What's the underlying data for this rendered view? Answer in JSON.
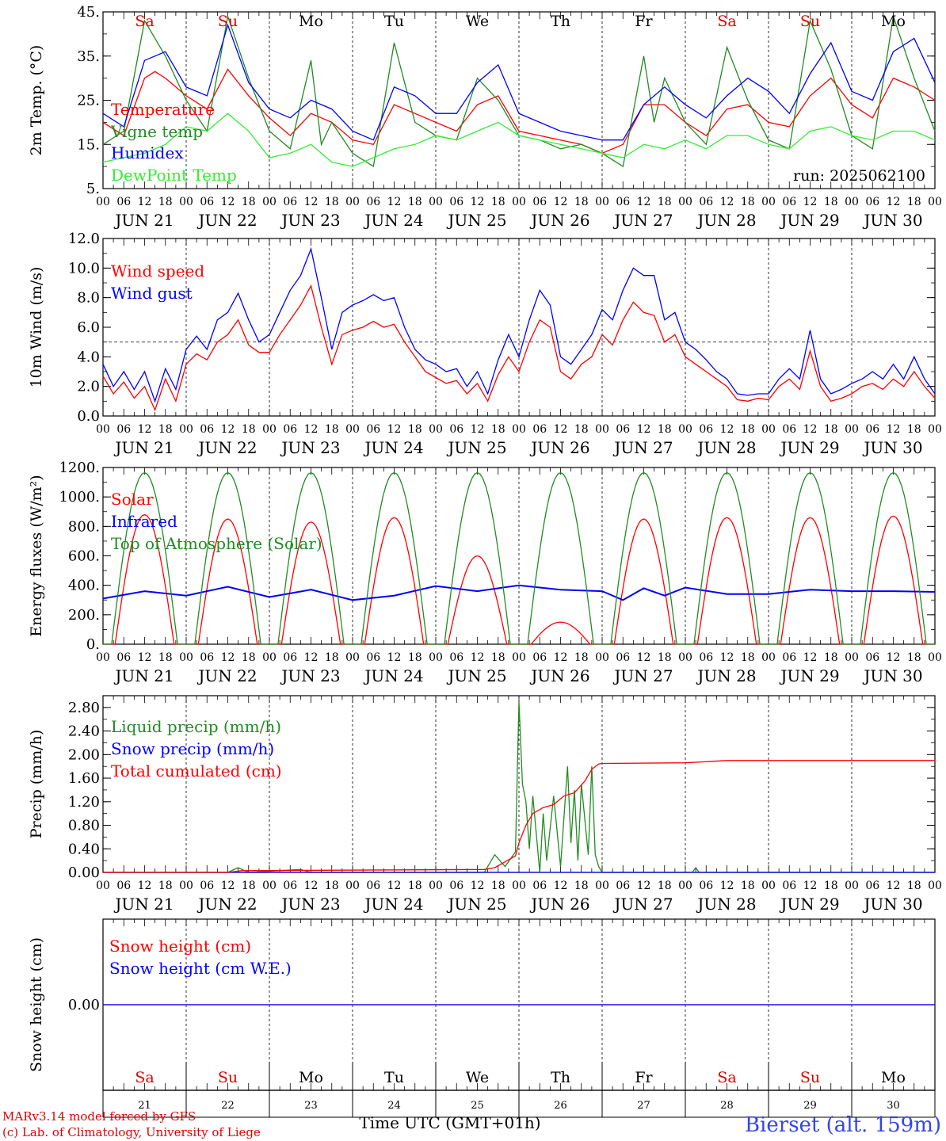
{
  "header": {
    "run_label": "run: 2025062100"
  },
  "days": {
    "dates": [
      "JUN 21",
      "JUN 22",
      "JUN 23",
      "JUN 24",
      "JUN 25",
      "JUN 26",
      "JUN 27",
      "JUN 28",
      "JUN 29",
      "JUN 30"
    ],
    "weekdays": [
      "Sa",
      "Su",
      "Mo",
      "Tu",
      "We",
      "Th",
      "Fr",
      "Sa",
      "Su",
      "Mo"
    ],
    "weekday_colors": [
      "#e00000",
      "#e00000",
      "#000000",
      "#000000",
      "#000000",
      "#000000",
      "#000000",
      "#e00000",
      "#e00000",
      "#000000"
    ],
    "day_numbers": [
      "21",
      "22",
      "23",
      "24",
      "25",
      "26",
      "27",
      "28",
      "29",
      "30"
    ],
    "hour_labels": [
      "00",
      "06",
      "12",
      "18"
    ],
    "final_hour_label": "00"
  },
  "chart_data": [
    {
      "type": "line",
      "ylabel": "2m Temp. (°C)",
      "ylim": [
        5,
        45
      ],
      "yticks": [
        "5.",
        "15.",
        "25.",
        "35.",
        "45."
      ],
      "x_unit": "hours since JUN 21 00 UTC",
      "series": [
        {
          "name": "Temperature",
          "color": "#ff0000",
          "x": [
            0,
            6,
            12,
            15,
            18,
            24,
            30,
            36,
            42,
            48,
            54,
            60,
            66,
            72,
            78,
            84,
            90,
            96,
            102,
            108,
            114,
            120,
            126,
            132,
            138,
            144,
            150,
            156,
            162,
            168,
            174,
            180,
            186,
            192,
            198,
            204,
            210,
            216,
            222,
            228,
            234,
            240
          ],
          "values": [
            20,
            17,
            30,
            31.5,
            30,
            26,
            23,
            32,
            26,
            21,
            17,
            22,
            20,
            16,
            15,
            24,
            22,
            20,
            18,
            24,
            26,
            18,
            17,
            16,
            15,
            13,
            15,
            24,
            24,
            20,
            17,
            23,
            24,
            20,
            19,
            26,
            30,
            24,
            21,
            30,
            28,
            25
          ]
        },
        {
          "name": "Vigne temp",
          "color": "#228b22",
          "x": [
            0,
            6,
            12,
            18,
            24,
            30,
            36,
            42,
            48,
            54,
            60,
            63,
            66,
            72,
            78,
            84,
            90,
            96,
            102,
            108,
            114,
            120,
            126,
            132,
            138,
            144,
            150,
            156,
            159,
            162,
            168,
            174,
            180,
            186,
            192,
            198,
            204,
            210,
            216,
            222,
            228,
            234,
            240
          ],
          "values": [
            15,
            18,
            43,
            35,
            25,
            18,
            44,
            30,
            18,
            14,
            34,
            15,
            20,
            13,
            10,
            38,
            20,
            17,
            16,
            30,
            25,
            17,
            16,
            14,
            15,
            13,
            10,
            35,
            20,
            30,
            20,
            15,
            37,
            25,
            16,
            14,
            43,
            32,
            17,
            14,
            44,
            30,
            18
          ]
        },
        {
          "name": "Humidex",
          "color": "#0000ff",
          "x": [
            0,
            6,
            12,
            18,
            24,
            30,
            36,
            42,
            48,
            54,
            60,
            66,
            72,
            78,
            84,
            90,
            96,
            102,
            108,
            114,
            120,
            126,
            132,
            138,
            144,
            150,
            156,
            162,
            168,
            174,
            180,
            186,
            192,
            198,
            204,
            210,
            216,
            222,
            228,
            234,
            240
          ],
          "values": [
            22,
            19,
            34,
            36,
            28,
            26,
            42,
            29,
            23,
            21,
            25,
            23,
            18,
            16,
            28,
            26,
            22,
            22,
            29,
            33,
            22,
            20,
            18,
            17,
            16,
            16,
            24,
            28,
            24,
            21,
            26,
            30,
            27,
            22,
            31,
            38,
            27,
            25,
            36,
            39,
            29
          ]
        },
        {
          "name": "DewPoint Temp",
          "color": "#33ee33",
          "x": [
            0,
            6,
            12,
            18,
            24,
            30,
            36,
            42,
            48,
            54,
            60,
            66,
            72,
            78,
            84,
            90,
            96,
            102,
            108,
            114,
            120,
            126,
            132,
            138,
            144,
            150,
            156,
            162,
            168,
            174,
            180,
            186,
            192,
            198,
            204,
            210,
            216,
            222,
            228,
            234,
            240
          ],
          "values": [
            11,
            12,
            13,
            15,
            19,
            18,
            22,
            18,
            12,
            13,
            15,
            11,
            10,
            12,
            14,
            15,
            17,
            16,
            18,
            20,
            17,
            16,
            15,
            14,
            13,
            12,
            15,
            14,
            16,
            14,
            17,
            17,
            15,
            14,
            18,
            19,
            17,
            16,
            18,
            18,
            16
          ]
        }
      ]
    },
    {
      "type": "line",
      "ylabel": "10m Wind (m/s)",
      "ylim": [
        0,
        12
      ],
      "yticks": [
        "0.0",
        "2.0",
        "4.0",
        "6.0",
        "8.0",
        "10.0",
        "12.0"
      ],
      "reference_line": 5,
      "series": [
        {
          "name": "Wind speed",
          "color": "#ff0000",
          "x": [
            0,
            3,
            6,
            9,
            12,
            15,
            18,
            21,
            24,
            27,
            30,
            33,
            36,
            39,
            42,
            45,
            48,
            51,
            54,
            57,
            60,
            63,
            66,
            69,
            72,
            75,
            78,
            81,
            84,
            87,
            90,
            93,
            96,
            99,
            102,
            105,
            108,
            111,
            114,
            117,
            120,
            123,
            126,
            129,
            132,
            135,
            138,
            141,
            144,
            147,
            150,
            153,
            156,
            159,
            162,
            165,
            168,
            171,
            174,
            177,
            180,
            183,
            186,
            189,
            192,
            195,
            198,
            201,
            204,
            207,
            210,
            213,
            216,
            219,
            222,
            225,
            228,
            231,
            234,
            237,
            240
          ],
          "values": [
            2.7,
            1.5,
            2.3,
            1.2,
            2.0,
            0.4,
            2.5,
            1.0,
            3.5,
            4.2,
            3.8,
            5.0,
            5.5,
            6.5,
            4.8,
            4.3,
            4.3,
            5.5,
            6.5,
            7.5,
            8.8,
            6.0,
            3.5,
            5.5,
            5.8,
            6.0,
            6.4,
            6.0,
            6.2,
            5.0,
            4.0,
            3.0,
            2.6,
            2.2,
            2.4,
            1.5,
            2.2,
            1.0,
            2.8,
            4.0,
            3.0,
            5.0,
            6.5,
            6.0,
            3.0,
            2.5,
            3.5,
            4.0,
            5.5,
            4.8,
            6.5,
            7.7,
            7.0,
            6.8,
            5.0,
            5.5,
            4.0,
            3.5,
            3.0,
            2.5,
            2.0,
            1.1,
            1.0,
            1.2,
            1.1,
            2.0,
            2.5,
            1.8,
            4.4,
            2.0,
            1.0,
            1.2,
            1.5,
            2.0,
            2.2,
            1.8,
            2.5,
            2.0,
            3.0,
            2.0,
            1.2
          ]
        },
        {
          "name": "Wind gust",
          "color": "#0000ff",
          "x": [
            0,
            3,
            6,
            9,
            12,
            15,
            18,
            21,
            24,
            27,
            30,
            33,
            36,
            39,
            42,
            45,
            48,
            51,
            54,
            57,
            60,
            63,
            66,
            69,
            72,
            75,
            78,
            81,
            84,
            87,
            90,
            93,
            96,
            99,
            102,
            105,
            108,
            111,
            114,
            117,
            120,
            123,
            126,
            129,
            132,
            135,
            138,
            141,
            144,
            147,
            150,
            153,
            156,
            159,
            162,
            165,
            168,
            171,
            174,
            177,
            180,
            183,
            186,
            189,
            192,
            195,
            198,
            201,
            204,
            207,
            210,
            213,
            216,
            219,
            222,
            225,
            228,
            231,
            234,
            237,
            240
          ],
          "values": [
            3.5,
            2.0,
            3.0,
            1.8,
            3.0,
            1.0,
            3.2,
            1.8,
            4.5,
            5.4,
            4.5,
            6.5,
            7.0,
            8.3,
            6.5,
            5.0,
            5.5,
            7.0,
            8.5,
            9.5,
            11.3,
            8.0,
            4.5,
            7.0,
            7.5,
            7.8,
            8.2,
            7.8,
            8.0,
            6.0,
            4.5,
            3.8,
            3.5,
            3.0,
            3.2,
            2.0,
            3.0,
            1.5,
            3.8,
            5.5,
            4.0,
            6.5,
            8.5,
            7.5,
            4.0,
            3.5,
            4.5,
            5.5,
            7.2,
            6.5,
            8.5,
            10.0,
            9.5,
            9.5,
            6.5,
            7.0,
            5.0,
            4.5,
            3.8,
            3.0,
            2.5,
            1.5,
            1.4,
            1.5,
            1.5,
            2.5,
            3.2,
            2.5,
            5.8,
            2.5,
            1.5,
            1.8,
            2.2,
            2.5,
            3.0,
            2.5,
            3.5,
            2.5,
            4.0,
            2.5,
            1.5
          ]
        }
      ]
    },
    {
      "type": "line",
      "ylabel": "Energy fluxes (W/m²)",
      "ylim": [
        0,
        1200
      ],
      "yticks": [
        "0.",
        "200.",
        "400.",
        "600.",
        "800.",
        "1000.",
        "1200."
      ],
      "series": [
        {
          "name": "Solar",
          "color": "#ff0000",
          "daily_peaks": [
            880,
            850,
            830,
            860,
            600,
            150,
            850,
            860,
            860,
            870
          ]
        },
        {
          "name": "Infrared",
          "color": "#0000ff",
          "x": [
            0,
            12,
            24,
            36,
            48,
            60,
            72,
            84,
            96,
            108,
            120,
            132,
            144,
            150,
            156,
            162,
            168,
            180,
            192,
            204,
            216,
            228,
            240
          ],
          "values": [
            310,
            360,
            330,
            390,
            320,
            370,
            300,
            330,
            395,
            360,
            400,
            370,
            360,
            300,
            380,
            330,
            385,
            340,
            340,
            370,
            360,
            360,
            355
          ]
        },
        {
          "name": "Top of Atmosphere (Solar)",
          "color": "#228b22",
          "daily_peaks": [
            1165,
            1165,
            1165,
            1165,
            1165,
            1165,
            1165,
            1165,
            1165,
            1165
          ]
        }
      ]
    },
    {
      "type": "line",
      "ylabel": "Precip (mm/h)",
      "ylim": [
        0,
        3.0
      ],
      "yticks": [
        "0.00",
        "0.40",
        "0.80",
        "1.20",
        "1.60",
        "2.00",
        "2.40",
        "2.80"
      ],
      "series": [
        {
          "name": "Liquid precip (mm/h)",
          "color": "#228b22",
          "x": [
            0,
            36,
            39,
            42,
            57,
            60,
            110,
            113,
            116,
            119,
            120,
            121,
            122,
            123,
            124,
            126,
            127,
            128,
            130,
            132,
            134,
            135,
            136,
            137,
            138,
            140,
            141,
            142,
            143,
            144,
            146,
            150,
            170,
            171,
            172,
            240
          ],
          "values": [
            0,
            0,
            0.08,
            0,
            0.05,
            0,
            0,
            0.3,
            0.1,
            0.35,
            2.9,
            1.5,
            1.2,
            0.4,
            1.3,
            0,
            1.0,
            0.2,
            1.3,
            0.1,
            1.8,
            0.5,
            1.4,
            0.2,
            1.5,
            0.3,
            1.8,
            0.3,
            0.1,
            0,
            0,
            0,
            0,
            0.08,
            0,
            0
          ]
        },
        {
          "name": "Snow precip (mm/h)",
          "color": "#0000ff",
          "x": [
            0,
            240
          ],
          "values": [
            0,
            0
          ]
        },
        {
          "name": "Total cumulated (cm)",
          "color": "#ff0000",
          "x": [
            0,
            36,
            40,
            110,
            113,
            116,
            119,
            120,
            122,
            124,
            127,
            130,
            133,
            136,
            139,
            141,
            143,
            144,
            168,
            174,
            180,
            240
          ],
          "values": [
            0,
            0,
            0.03,
            0.05,
            0.08,
            0.18,
            0.28,
            0.5,
            0.8,
            1.0,
            1.1,
            1.15,
            1.3,
            1.35,
            1.55,
            1.75,
            1.84,
            1.85,
            1.86,
            1.88,
            1.9,
            1.9
          ]
        }
      ]
    },
    {
      "type": "line",
      "ylabel": "Snow height (cm)",
      "ylim": [
        -1,
        1
      ],
      "yticks": [
        "0.00"
      ],
      "series": [
        {
          "name": "Snow height (cm)",
          "color": "#ff0000",
          "x": [
            0,
            240
          ],
          "values": [
            0,
            0
          ]
        },
        {
          "name": "Snow height (cm W.E.)",
          "color": "#0000ff",
          "x": [
            0,
            240
          ],
          "values": [
            0,
            0
          ]
        }
      ]
    }
  ],
  "footer": {
    "xlabel": "Time UTC (GMT+01h)",
    "credit_line1": "MARv3.14 model forced by GFS",
    "credit_line2": "(c) Lab. of Climatology, University of Liege",
    "station": "Bierset (alt. 159m)"
  }
}
